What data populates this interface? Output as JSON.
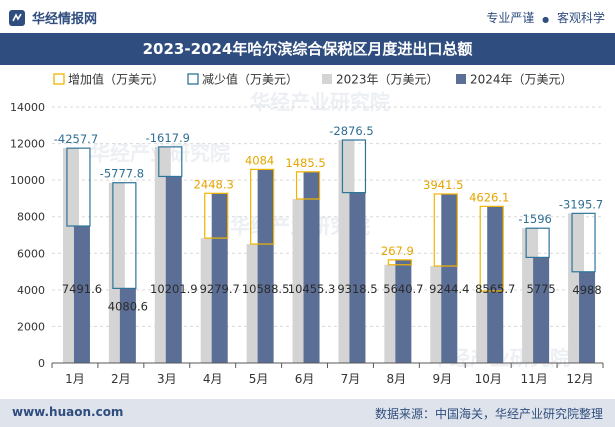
{
  "header": {
    "brand": "华经情报网",
    "slogan_left": "专业严谨",
    "slogan_sep": "●",
    "slogan_right": "客观科学"
  },
  "footer": {
    "url": "www.huaon.com",
    "source": "数据来源：中国海关，华经产业研究院整理"
  },
  "watermark": "华经产业研究院",
  "colors": {
    "bar2023": "#d4d4d4",
    "bar2024": "#5b6e96",
    "increase": "#f2b400",
    "decrease": "#2e7599",
    "increase_label": "#e5a500",
    "decrease_label": "#2e6e93",
    "title_bg": "#2f4d7e"
  },
  "chart_data": {
    "type": "bar",
    "title": "2023-2024年哈尔滨综合保税区月度进出口总额",
    "categories": [
      "1月",
      "2月",
      "3月",
      "4月",
      "5月",
      "6月",
      "7月",
      "8月",
      "9月",
      "10月",
      "11月",
      "12月"
    ],
    "series": [
      {
        "name": "2023年（万美元）",
        "values": [
          11749.3,
          9858.4,
          11819.8,
          6831.4,
          6504.5,
          8969.8,
          12195.0,
          5372.8,
          5302.9,
          3939.6,
          7371.0,
          8183.7
        ]
      },
      {
        "name": "2024年（万美元）",
        "values": [
          7491.6,
          4080.6,
          10201.9,
          9279.7,
          10588.5,
          10455.3,
          9318.5,
          5640.7,
          9244.4,
          8565.7,
          5775,
          4988
        ]
      }
    ],
    "changes": [
      {
        "value": "-4257.7",
        "kind": "decrease"
      },
      {
        "value": "-5777.8",
        "kind": "decrease"
      },
      {
        "value": "-1617.9",
        "kind": "decrease"
      },
      {
        "value": "2448.3",
        "kind": "increase"
      },
      {
        "value": "4084",
        "kind": "increase"
      },
      {
        "value": "1485.5",
        "kind": "increase"
      },
      {
        "value": "-2876.5",
        "kind": "decrease"
      },
      {
        "value": "267.9",
        "kind": "increase"
      },
      {
        "value": "3941.5",
        "kind": "increase"
      },
      {
        "value": "4626.1",
        "kind": "increase"
      },
      {
        "value": "-1596",
        "kind": "decrease"
      },
      {
        "value": "-3195.7",
        "kind": "decrease"
      }
    ],
    "data_labels_2024": [
      "7491.6",
      "4080.6",
      "10201.9",
      "9279.7",
      "10588.5",
      "10455.3",
      "9318.5",
      "5640.7",
      "9244.4",
      "8565.7",
      "5775",
      "4988"
    ],
    "legend": [
      "增加值（万美元）",
      "减少值（万美元）",
      "2023年（万美元）",
      "2024年（万美元）"
    ],
    "ylim": [
      0,
      14000
    ],
    "yticks": [
      "0",
      "2000",
      "4000",
      "6000",
      "8000",
      "10000",
      "12000",
      "14000"
    ],
    "legend_position": "top"
  }
}
